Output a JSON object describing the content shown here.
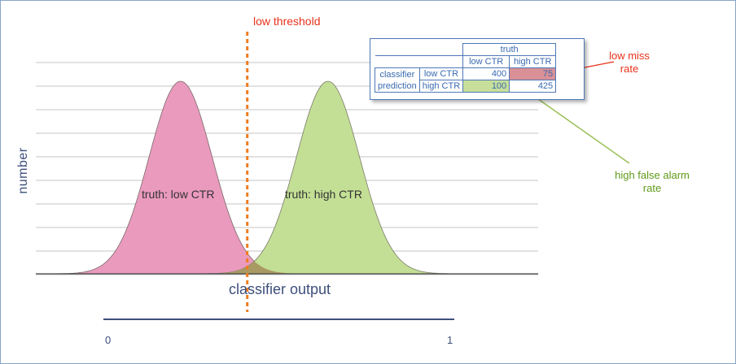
{
  "figure": {
    "threshold_label": "low threshold",
    "y_axis_label": "number",
    "x_axis_label": "classifier output",
    "x_ticks": [
      "0",
      "1"
    ],
    "distributions": [
      {
        "label": "truth: low CTR",
        "color": "#ea9abd",
        "mean": 0.22,
        "sd": 0.09
      },
      {
        "label": "truth: high CTR",
        "color": "#c3df95",
        "mean": 0.64,
        "sd": 0.09
      }
    ],
    "overlap_color": "#a89a62",
    "threshold_color": "#f07c1c",
    "threshold_value": 0.41
  },
  "matrix": {
    "truth_header": "truth",
    "col_headers": [
      "low CTR",
      "high CTR"
    ],
    "row_group_label_line1": "classifier",
    "row_group_label_line2": "prediction",
    "rows": [
      {
        "label": "low CTR",
        "values": [
          "400",
          "75"
        ]
      },
      {
        "label": "high CTR",
        "values": [
          "100",
          "425"
        ]
      }
    ]
  },
  "annotations": {
    "miss_rate": "low miss rate",
    "false_alarm": "high false alarm rate",
    "miss_color": "#e8321a",
    "false_alarm_color": "#7aaa3c"
  }
}
